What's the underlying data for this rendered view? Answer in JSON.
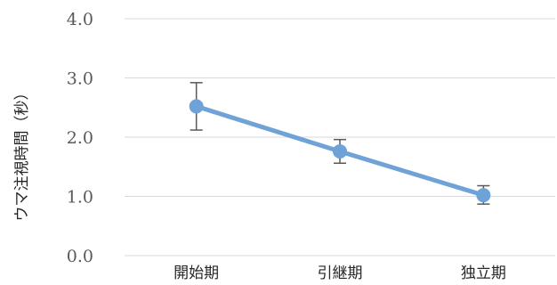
{
  "chart_data": {
    "type": "line",
    "title": "",
    "xlabel": "",
    "ylabel": "ウマ注視時間（秒）",
    "ylim": [
      0,
      4
    ],
    "y_ticks": [
      "0.0",
      "1.0",
      "2.0",
      "3.0",
      "4.0"
    ],
    "categories": [
      "開始期",
      "引継期",
      "独立期"
    ],
    "values": [
      2.52,
      1.76,
      1.02
    ],
    "error_upper": [
      2.92,
      1.96,
      1.18
    ],
    "error_lower": [
      2.12,
      1.56,
      0.87
    ],
    "grid": true,
    "legend": "none",
    "line_color": "#6FA2D6",
    "error_color": "#595959",
    "grid_color": "#D9D9D9"
  }
}
